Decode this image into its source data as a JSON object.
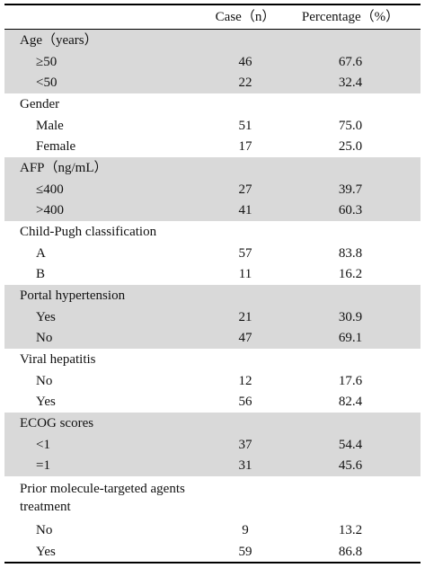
{
  "table": {
    "header": {
      "case": "Case（n）",
      "percentage": "Percentage（%）"
    },
    "groups": [
      {
        "label": "Age（years）",
        "rows": [
          {
            "label": "≥50",
            "case": "46",
            "percentage": "67.6"
          },
          {
            "label": "<50",
            "case": "22",
            "percentage": "32.4"
          }
        ]
      },
      {
        "label": "Gender",
        "rows": [
          {
            "label": "Male",
            "case": "51",
            "percentage": "75.0"
          },
          {
            "label": "Female",
            "case": "17",
            "percentage": "25.0"
          }
        ]
      },
      {
        "label": "AFP（ng/mL）",
        "rows": [
          {
            "label": "≤400",
            "case": "27",
            "percentage": "39.7"
          },
          {
            "label": ">400",
            "case": "41",
            "percentage": "60.3"
          }
        ]
      },
      {
        "label": "Child-Pugh classification",
        "rows": [
          {
            "label": "A",
            "case": "57",
            "percentage": "83.8"
          },
          {
            "label": "B",
            "case": "11",
            "percentage": "16.2"
          }
        ]
      },
      {
        "label": "Portal hypertension",
        "rows": [
          {
            "label": "Yes",
            "case": "21",
            "percentage": "30.9"
          },
          {
            "label": "No",
            "case": "47",
            "percentage": "69.1"
          }
        ]
      },
      {
        "label": "Viral hepatitis",
        "rows": [
          {
            "label": "No",
            "case": "12",
            "percentage": "17.6"
          },
          {
            "label": "Yes",
            "case": "56",
            "percentage": "82.4"
          }
        ]
      },
      {
        "label": "ECOG scores",
        "rows": [
          {
            "label": "<1",
            "case": "37",
            "percentage": "54.4"
          },
          {
            "label": "=1",
            "case": "31",
            "percentage": "45.6"
          }
        ]
      },
      {
        "label": "Prior molecule-targeted agents treatment",
        "rows": [
          {
            "label": "No",
            "case": "9",
            "percentage": "13.2"
          },
          {
            "label": "Yes",
            "case": "59",
            "percentage": "86.8"
          }
        ]
      }
    ]
  }
}
